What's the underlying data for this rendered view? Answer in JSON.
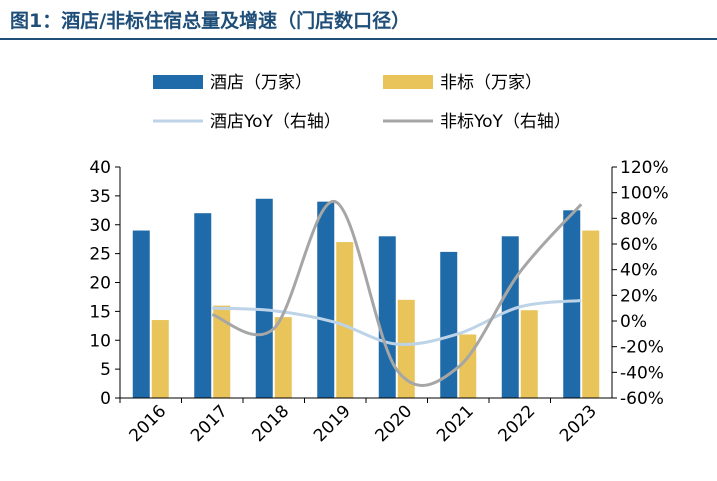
{
  "figure_title": "图1：酒店/非标住宿总量及增速（门店数口径）",
  "colors": {
    "bar_hotel": "#1f6aa8",
    "bar_nonstd": "#e8c45a",
    "line_hotel": "#bdd3e8",
    "line_nonstd": "#a6a6a6",
    "title": "#1f4e79"
  },
  "chart_data": {
    "type": "bar",
    "categories": [
      "2016",
      "2017",
      "2018",
      "2019",
      "2020",
      "2021",
      "2022",
      "2023"
    ],
    "series": [
      {
        "name": "酒店（万家）",
        "kind": "bar",
        "axis": "left",
        "values": [
          29,
          32,
          34.5,
          34,
          28,
          25.3,
          28,
          32.5
        ]
      },
      {
        "name": "非标（万家）",
        "kind": "bar",
        "axis": "left",
        "values": [
          13.5,
          16,
          14,
          27,
          17,
          11,
          15.2,
          29
        ]
      },
      {
        "name": "酒店YoY（右轴）",
        "kind": "line",
        "axis": "right",
        "values": [
          null,
          0.1,
          0.08,
          -0.01,
          -0.18,
          -0.1,
          0.11,
          0.16
        ]
      },
      {
        "name": "非标YoY（右轴）",
        "kind": "line",
        "axis": "right",
        "values": [
          null,
          0.05,
          -0.06,
          0.93,
          -0.38,
          -0.36,
          0.38,
          0.91
        ]
      }
    ],
    "ylim_left": [
      0,
      40
    ],
    "yticks_left": [
      "0",
      "5",
      "10",
      "15",
      "20",
      "25",
      "30",
      "35",
      "40"
    ],
    "ylim_right": [
      -0.6,
      1.2
    ],
    "yticks_right": [
      "-60%",
      "-40%",
      "-20%",
      "0%",
      "20%",
      "40%",
      "60%",
      "80%",
      "100%",
      "120%"
    ],
    "legend": "top"
  }
}
